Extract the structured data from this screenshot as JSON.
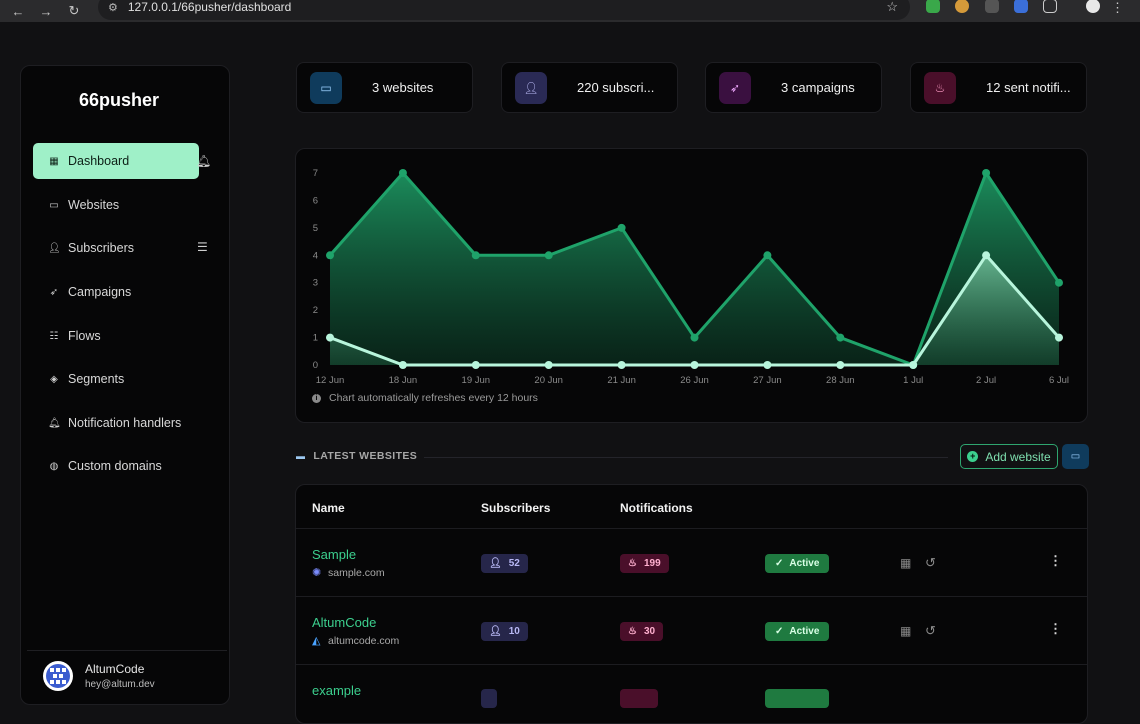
{
  "browser": {
    "url": "127.0.0.1/66pusher/dashboard"
  },
  "sidebar": {
    "brand": "66pusher",
    "items": [
      {
        "label": "Dashboard",
        "icon": "grid-icon"
      },
      {
        "label": "Websites",
        "icon": "browser-icon"
      },
      {
        "label": "Subscribers",
        "icon": "user-check-icon"
      },
      {
        "label": "Campaigns",
        "icon": "rocket-icon"
      },
      {
        "label": "Flows",
        "icon": "list-check-icon"
      },
      {
        "label": "Segments",
        "icon": "layers-icon"
      },
      {
        "label": "Notification handlers",
        "icon": "bell-icon"
      },
      {
        "label": "Custom domains",
        "icon": "globe-icon"
      }
    ],
    "user": {
      "name": "AltumCode",
      "email": "hey@altum.dev"
    }
  },
  "stats": [
    {
      "label": "3 websites",
      "icon": "browser-icon",
      "color": "#0f3b5c"
    },
    {
      "label": "220 subscri...",
      "icon": "user-check-icon",
      "color": "#2a2a55"
    },
    {
      "label": "3 campaigns",
      "icon": "rocket-icon",
      "color": "#3a1040"
    },
    {
      "label": "12 sent notifi...",
      "icon": "fire-icon",
      "color": "#4a0f2a"
    }
  ],
  "chart_data": {
    "type": "area",
    "categories": [
      "12 Jun",
      "18 Jun",
      "19 Jun",
      "20 Jun",
      "21 Jun",
      "26 Jun",
      "27 Jun",
      "28 Jun",
      "1 Jul",
      "2 Jul",
      "6 Jul"
    ],
    "series": [
      {
        "values": [
          4,
          7,
          4,
          4,
          5,
          1,
          4,
          1,
          0,
          7,
          3
        ],
        "color": "#1fa36a"
      },
      {
        "values": [
          1,
          0,
          0,
          0,
          0,
          0,
          0,
          0,
          0,
          4,
          1
        ],
        "color": "#b8f5dc"
      }
    ],
    "yticks": [
      0,
      1,
      2,
      3,
      4,
      5,
      6,
      7
    ],
    "ylim": [
      0,
      7
    ],
    "note": "Chart automatically refreshes every 12 hours"
  },
  "latest": {
    "title": "LATEST WEBSITES",
    "add_label": "Add website"
  },
  "table": {
    "headers": [
      "Name",
      "Subscribers",
      "Notifications"
    ],
    "rows": [
      {
        "name": "Sample",
        "domain": "sample.com",
        "subscribers": "52",
        "notifications": "199",
        "status": "Active"
      },
      {
        "name": "AltumCode",
        "domain": "altumcode.com",
        "subscribers": "10",
        "notifications": "30",
        "status": "Active"
      },
      {
        "name": "example",
        "domain": "",
        "subscribers": "",
        "notifications": "",
        "status": ""
      }
    ]
  }
}
